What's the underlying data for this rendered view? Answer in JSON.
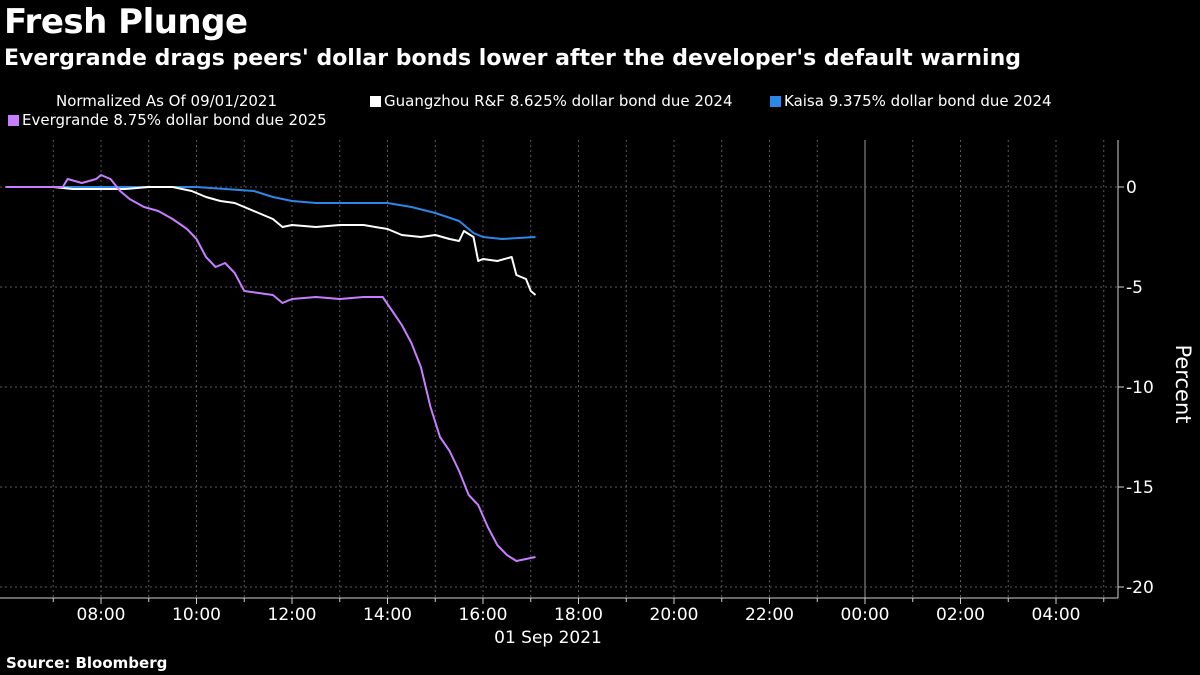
{
  "header": {
    "title": "Fresh Plunge",
    "subtitle": "Evergrande drags peers' dollar bonds lower after the developer's default warning"
  },
  "legend": {
    "note": "Normalized As Of 09/01/2021",
    "items": [
      {
        "label": "Guangzhou R&F 8.625% dollar bond due 2024",
        "color": "#ffffff"
      },
      {
        "label": "Kaisa 9.375% dollar bond due 2024",
        "color": "#2b87e8"
      },
      {
        "label": "Evergrande 8.75% dollar bond due 2025",
        "color": "#c77dff"
      }
    ]
  },
  "footer": {
    "source": "Source: Bloomberg"
  },
  "chart_data": {
    "type": "line",
    "title": "Fresh Plunge",
    "ylabel": "Percent",
    "xlabel": "01 Sep 2021",
    "y_axis_position": "right",
    "ylim": [
      -20,
      2
    ],
    "xlim": [
      6.0,
      29.2
    ],
    "x_unit": "hours from 00:00 on 01 Sep 2021",
    "x_ticks": [
      {
        "value": 8,
        "label": "08:00"
      },
      {
        "value": 10,
        "label": "10:00"
      },
      {
        "value": 12,
        "label": "12:00"
      },
      {
        "value": 14,
        "label": "14:00"
      },
      {
        "value": 16,
        "label": "16:00"
      },
      {
        "value": 18,
        "label": "18:00"
      },
      {
        "value": 20,
        "label": "20:00"
      },
      {
        "value": 22,
        "label": "22:00"
      },
      {
        "value": 24,
        "label": "00:00"
      },
      {
        "value": 26,
        "label": "02:00"
      },
      {
        "value": 28,
        "label": "04:00"
      }
    ],
    "y_ticks": [
      {
        "value": 0,
        "label": "0"
      },
      {
        "value": -5,
        "label": "-5"
      },
      {
        "value": -10,
        "label": "-10"
      },
      {
        "value": -15,
        "label": "-15"
      },
      {
        "value": -20,
        "label": "-20"
      }
    ],
    "grid": true,
    "legend_position": "top",
    "series": [
      {
        "name": "Guangzhou R&F 8.625% dollar bond due 2024",
        "color": "#ffffff",
        "points": [
          [
            6.0,
            0
          ],
          [
            7.0,
            0
          ],
          [
            7.4,
            -0.1
          ],
          [
            8.0,
            -0.1
          ],
          [
            8.5,
            -0.1
          ],
          [
            9.0,
            0
          ],
          [
            9.5,
            0
          ],
          [
            9.9,
            -0.2
          ],
          [
            10.2,
            -0.5
          ],
          [
            10.5,
            -0.7
          ],
          [
            10.8,
            -0.8
          ],
          [
            11.0,
            -1.0
          ],
          [
            11.3,
            -1.3
          ],
          [
            11.6,
            -1.6
          ],
          [
            11.8,
            -2.0
          ],
          [
            12.0,
            -1.9
          ],
          [
            12.5,
            -2.0
          ],
          [
            13.0,
            -1.9
          ],
          [
            13.5,
            -1.9
          ],
          [
            14.0,
            -2.1
          ],
          [
            14.3,
            -2.4
          ],
          [
            14.7,
            -2.5
          ],
          [
            15.0,
            -2.4
          ],
          [
            15.3,
            -2.6
          ],
          [
            15.5,
            -2.7
          ],
          [
            15.6,
            -2.2
          ],
          [
            15.8,
            -2.5
          ],
          [
            15.9,
            -3.7
          ],
          [
            16.0,
            -3.6
          ],
          [
            16.3,
            -3.7
          ],
          [
            16.6,
            -3.5
          ],
          [
            16.7,
            -4.4
          ],
          [
            16.9,
            -4.6
          ],
          [
            17.0,
            -5.2
          ],
          [
            17.1,
            -5.4
          ]
        ]
      },
      {
        "name": "Kaisa 9.375% dollar bond due 2024",
        "color": "#2b87e8",
        "points": [
          [
            6.0,
            0
          ],
          [
            7.0,
            0
          ],
          [
            8.0,
            0
          ],
          [
            9.0,
            0
          ],
          [
            10.0,
            0
          ],
          [
            10.6,
            -0.1
          ],
          [
            11.2,
            -0.2
          ],
          [
            11.6,
            -0.5
          ],
          [
            12.0,
            -0.7
          ],
          [
            12.5,
            -0.8
          ],
          [
            13.0,
            -0.8
          ],
          [
            13.5,
            -0.8
          ],
          [
            14.0,
            -0.8
          ],
          [
            14.5,
            -1.0
          ],
          [
            15.0,
            -1.3
          ],
          [
            15.5,
            -1.7
          ],
          [
            15.8,
            -2.3
          ],
          [
            16.0,
            -2.5
          ],
          [
            16.4,
            -2.6
          ],
          [
            17.1,
            -2.5
          ]
        ]
      },
      {
        "name": "Evergrande 8.75% dollar bond due 2025",
        "color": "#c77dff",
        "points": [
          [
            6.0,
            0
          ],
          [
            7.2,
            0
          ],
          [
            7.3,
            0.4
          ],
          [
            7.6,
            0.2
          ],
          [
            7.9,
            0.4
          ],
          [
            8.0,
            0.6
          ],
          [
            8.2,
            0.4
          ],
          [
            8.4,
            -0.2
          ],
          [
            8.6,
            -0.6
          ],
          [
            8.9,
            -1.0
          ],
          [
            9.2,
            -1.2
          ],
          [
            9.5,
            -1.6
          ],
          [
            9.8,
            -2.1
          ],
          [
            10.0,
            -2.6
          ],
          [
            10.2,
            -3.5
          ],
          [
            10.4,
            -4.0
          ],
          [
            10.6,
            -3.8
          ],
          [
            10.8,
            -4.3
          ],
          [
            11.0,
            -5.2
          ],
          [
            11.3,
            -5.3
          ],
          [
            11.6,
            -5.4
          ],
          [
            11.8,
            -5.8
          ],
          [
            12.0,
            -5.6
          ],
          [
            12.5,
            -5.5
          ],
          [
            13.0,
            -5.6
          ],
          [
            13.5,
            -5.5
          ],
          [
            13.9,
            -5.5
          ],
          [
            14.1,
            -6.2
          ],
          [
            14.3,
            -6.9
          ],
          [
            14.5,
            -7.8
          ],
          [
            14.7,
            -9.0
          ],
          [
            14.9,
            -11.0
          ],
          [
            15.1,
            -12.5
          ],
          [
            15.3,
            -13.2
          ],
          [
            15.5,
            -14.2
          ],
          [
            15.7,
            -15.4
          ],
          [
            15.9,
            -15.9
          ],
          [
            16.1,
            -17.0
          ],
          [
            16.3,
            -17.9
          ],
          [
            16.5,
            -18.4
          ],
          [
            16.7,
            -18.7
          ],
          [
            16.9,
            -18.6
          ],
          [
            17.1,
            -18.5
          ]
        ]
      }
    ]
  }
}
